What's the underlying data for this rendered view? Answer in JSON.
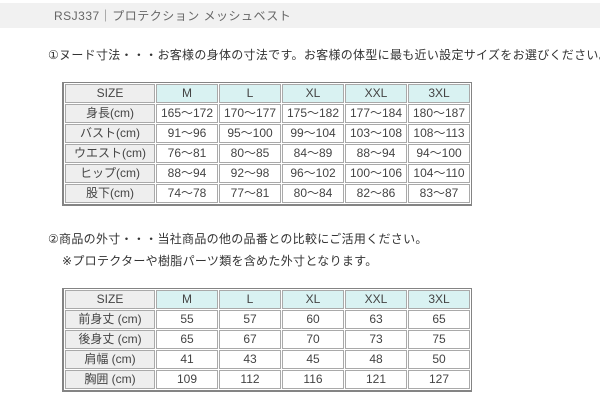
{
  "page": {
    "title_bar": "RSJ337｜プロテクション メッシュベスト"
  },
  "section1": {
    "intro": "①ヌード寸法・・・お客様の身体の寸法です。お客様の体型に最も近い設定サイズをお選びください。",
    "table": {
      "columns": [
        "SIZE",
        "M",
        "L",
        "XL",
        "XXL",
        "3XL"
      ],
      "rows": [
        {
          "label": "身長(cm)",
          "values": [
            "165〜172",
            "170〜177",
            "175〜182",
            "177〜184",
            "180〜187"
          ]
        },
        {
          "label": "バスト(cm)",
          "values": [
            "91〜96",
            "95〜100",
            "99〜104",
            "103〜108",
            "108〜113"
          ]
        },
        {
          "label": "ウエスト(cm)",
          "values": [
            "76〜81",
            "80〜85",
            "84〜89",
            "88〜94",
            "94〜100"
          ]
        },
        {
          "label": "ヒップ(cm)",
          "values": [
            "88〜94",
            "92〜98",
            "96〜102",
            "100〜106",
            "104〜110"
          ]
        },
        {
          "label": "股下(cm)",
          "values": [
            "74〜78",
            "77〜81",
            "80〜84",
            "82〜86",
            "83〜87"
          ]
        }
      ]
    }
  },
  "section2": {
    "intro": "②商品の外寸・・・当社商品の他の品番との比較にご活用ください。",
    "note": "※プロテクターや樹脂パーツ類を含めた外寸となります。",
    "table": {
      "columns": [
        "SIZE",
        "M",
        "L",
        "XL",
        "XXL",
        "3XL"
      ],
      "rows": [
        {
          "label": "前身丈 (cm)",
          "values": [
            "55",
            "57",
            "60",
            "63",
            "65"
          ]
        },
        {
          "label": "後身丈 (cm)",
          "values": [
            "65",
            "67",
            "70",
            "73",
            "75"
          ]
        },
        {
          "label": "肩幅 (cm)",
          "values": [
            "41",
            "43",
            "45",
            "48",
            "50"
          ]
        },
        {
          "label": "胸囲 (cm)",
          "values": [
            "109",
            "112",
            "116",
            "121",
            "127"
          ]
        }
      ]
    }
  },
  "colors": {
    "title_bar_bg": "#f1f1f1",
    "column_header_bg": "#d9f2f2",
    "row_label_bg": "#eeeeee",
    "table_border": "#a9a9a9",
    "table_outer_border": "#848484",
    "text": "#444444",
    "title_text": "#666666"
  }
}
